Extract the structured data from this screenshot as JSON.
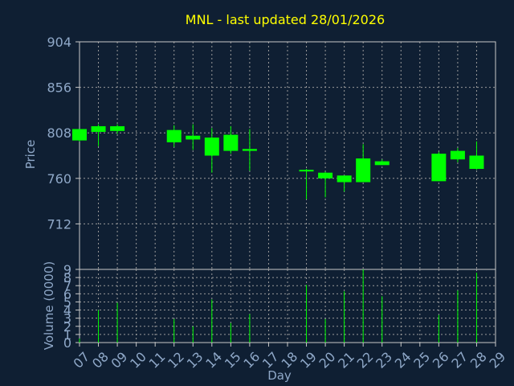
{
  "chart_data": [
    {
      "type": "candlestick",
      "title": "MNL - last updated 28/01/2026",
      "ylabel": "Price",
      "ylim": [
        664,
        904
      ],
      "yticks": [
        "904",
        "856",
        "808",
        "760",
        "712"
      ],
      "x": [
        "07",
        "08",
        "09",
        "12",
        "13",
        "14",
        "15",
        "16",
        "19",
        "20",
        "21",
        "22",
        "23",
        "26",
        "27",
        "28"
      ],
      "open": [
        800,
        809,
        810,
        811,
        801,
        803,
        806,
        789,
        769,
        766,
        763,
        756,
        778,
        786,
        789,
        770
      ],
      "high": [
        812,
        817,
        817,
        816,
        817,
        813,
        815,
        812,
        770,
        767,
        763,
        796,
        780,
        788,
        792,
        799
      ],
      "low": [
        799,
        794,
        807,
        793,
        790,
        766,
        786,
        768,
        738,
        740,
        746,
        756,
        774,
        757,
        777,
        769
      ],
      "close": [
        812,
        815,
        815,
        798,
        805,
        784,
        789,
        791,
        769,
        760,
        756,
        781,
        774,
        757,
        780,
        784
      ],
      "grid": true
    },
    {
      "type": "bar",
      "xlabel": "Day",
      "ylabel": "Volume (0000)",
      "ylim": [
        0,
        9
      ],
      "yticks": [
        "0",
        "1",
        "2",
        "3",
        "4",
        "5",
        "6",
        "7",
        "8",
        "9"
      ],
      "x": [
        "07",
        "08",
        "09",
        "12",
        "13",
        "14",
        "15",
        "16",
        "19",
        "20",
        "21",
        "22",
        "23",
        "26",
        "27",
        "28"
      ],
      "values": [
        0.5,
        4.0,
        4.9,
        2.9,
        2.0,
        5.3,
        2.4,
        3.5,
        7.1,
        2.9,
        6.3,
        9.0,
        5.7,
        3.4,
        6.4,
        8.6
      ],
      "grid": true
    }
  ],
  "x_axis": {
    "tick_labels": [
      "07",
      "08",
      "09",
      "10",
      "11",
      "12",
      "13",
      "14",
      "15",
      "16",
      "17",
      "18",
      "19",
      "20",
      "21",
      "22",
      "23",
      "24",
      "25",
      "26",
      "27",
      "28",
      "29"
    ]
  },
  "colors": {
    "background": "#0f1f33",
    "frame": "#c8c8c8",
    "grid": "#9a9a9a",
    "text": "#8fa8c8",
    "title": "#ffff00",
    "candle": "#00ff00"
  }
}
